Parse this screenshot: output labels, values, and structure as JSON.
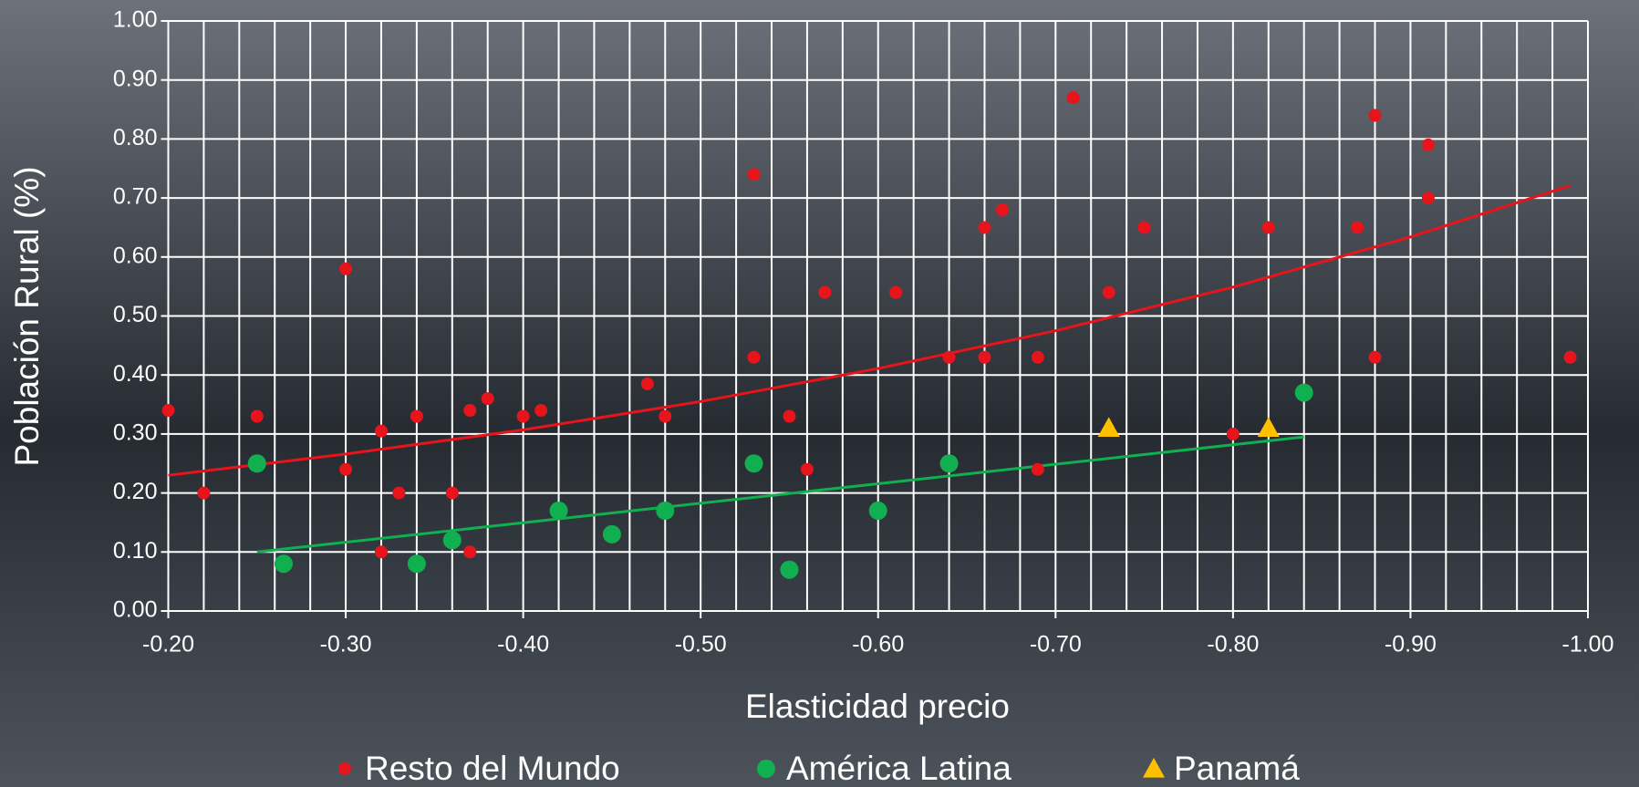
{
  "chart_data": {
    "type": "scatter",
    "xlabel": "Elasticidad precio",
    "ylabel": "Población Rural (%)",
    "xlim": [
      -0.2,
      -1.0
    ],
    "ylim": [
      0,
      1.0
    ],
    "xticks": [
      {
        "value": -0.2,
        "label": "-0.20"
      },
      {
        "value": -0.3,
        "label": "-0.30"
      },
      {
        "value": -0.4,
        "label": "-0.40"
      },
      {
        "value": -0.5,
        "label": "-0.50"
      },
      {
        "value": -0.6,
        "label": "-0.60"
      },
      {
        "value": -0.7,
        "label": "-0.70"
      },
      {
        "value": -0.8,
        "label": "-0.80"
      },
      {
        "value": -0.9,
        "label": "-0.90"
      },
      {
        "value": -1.0,
        "label": "-1.00"
      }
    ],
    "xminor": [
      -0.22,
      -0.24,
      -0.26,
      -0.28,
      -0.32,
      -0.34,
      -0.36,
      -0.38,
      -0.42,
      -0.44,
      -0.46,
      -0.48,
      -0.52,
      -0.54,
      -0.56,
      -0.58,
      -0.62,
      -0.64,
      -0.66,
      -0.68,
      -0.72,
      -0.74,
      -0.76,
      -0.78,
      -0.82,
      -0.84,
      -0.86,
      -0.88,
      -0.92,
      -0.94,
      -0.96,
      -0.98
    ],
    "yticks": [
      {
        "value": 0,
        "label": "0.00"
      },
      {
        "value": 0.1,
        "label": "0.10"
      },
      {
        "value": 0.2,
        "label": "0.20"
      },
      {
        "value": 0.3,
        "label": "0.30"
      },
      {
        "value": 0.4,
        "label": "0.40"
      },
      {
        "value": 0.5,
        "label": "0.50"
      },
      {
        "value": 0.6,
        "label": "0.60"
      },
      {
        "value": 0.7,
        "label": "0.70"
      },
      {
        "value": 0.8,
        "label": "0.80"
      },
      {
        "value": 0.9,
        "label": "0.90"
      },
      {
        "value": 1.0,
        "label": "1.00"
      }
    ],
    "grid": true,
    "legend": "bottom",
    "series": [
      {
        "name": "Resto del Mundo",
        "color": "#e8141b",
        "marker": "circle",
        "x": [
          -0.2,
          -0.22,
          -0.25,
          -0.3,
          -0.3,
          -0.32,
          -0.32,
          -0.33,
          -0.34,
          -0.36,
          -0.37,
          -0.37,
          -0.38,
          -0.4,
          -0.41,
          -0.47,
          -0.48,
          -0.53,
          -0.53,
          -0.55,
          -0.56,
          -0.57,
          -0.61,
          -0.64,
          -0.66,
          -0.66,
          -0.67,
          -0.69,
          -0.69,
          -0.71,
          -0.73,
          -0.75,
          -0.8,
          -0.82,
          -0.87,
          -0.88,
          -0.88,
          -0.91,
          -0.91,
          -0.99
        ],
        "values": [
          0.34,
          0.2,
          0.33,
          0.58,
          0.24,
          0.305,
          0.1,
          0.2,
          0.33,
          0.2,
          0.34,
          0.1,
          0.36,
          0.33,
          0.34,
          0.385,
          0.33,
          0.74,
          0.43,
          0.33,
          0.24,
          0.54,
          0.54,
          0.43,
          0.65,
          0.43,
          0.68,
          0.43,
          0.24,
          0.87,
          0.54,
          0.65,
          0.3,
          0.65,
          0.65,
          0.84,
          0.43,
          0.79,
          0.7,
          0.43
        ]
      },
      {
        "name": "América Latina",
        "color": "#10b050",
        "marker": "bigcircle",
        "x": [
          -0.25,
          -0.265,
          -0.34,
          -0.36,
          -0.42,
          -0.45,
          -0.48,
          -0.53,
          -0.55,
          -0.6,
          -0.64,
          -0.84
        ],
        "values": [
          0.25,
          0.08,
          0.08,
          0.12,
          0.17,
          0.13,
          0.17,
          0.25,
          0.07,
          0.17,
          0.25,
          0.37
        ]
      },
      {
        "name": "Panamá",
        "color": "#ffc000",
        "marker": "triangle",
        "x": [
          -0.73,
          -0.82
        ],
        "values": [
          0.31,
          0.31
        ]
      }
    ],
    "trendlines": [
      {
        "color": "#e8141b",
        "x": [
          -0.2,
          -0.3,
          -0.4,
          -0.5,
          -0.6,
          -0.7,
          -0.8,
          -0.9,
          -0.99
        ],
        "values": [
          0.23,
          0.266,
          0.307,
          0.355,
          0.411,
          0.475,
          0.549,
          0.634,
          0.721
        ]
      },
      {
        "color": "#10b050",
        "x": [
          -0.25,
          -0.84
        ],
        "values": [
          0.1,
          0.295
        ]
      }
    ]
  }
}
